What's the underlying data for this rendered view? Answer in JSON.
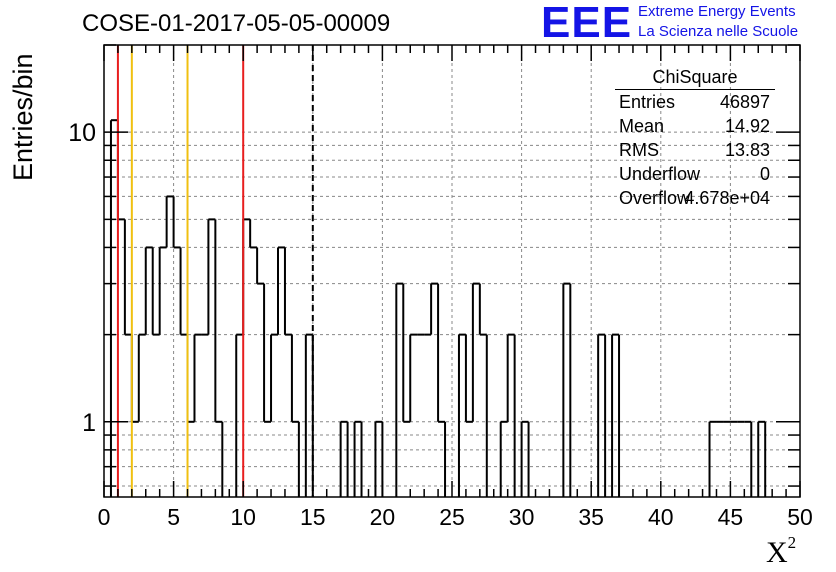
{
  "title": "COSE-01-2017-05-05-00009",
  "logo": {
    "text": "EEE",
    "line1": "Extreme Energy Events",
    "line2": "La Scienza nelle Scuole",
    "color": "#1414e6"
  },
  "stats": {
    "title": "ChiSquare",
    "rows": [
      {
        "key": "Entries",
        "value": "46897"
      },
      {
        "key": "Mean",
        "value": "14.92"
      },
      {
        "key": "RMS",
        "value": "13.83"
      },
      {
        "key": "Underflow",
        "value": "0"
      },
      {
        "key": "Overflow",
        "value": "4.678e+04"
      }
    ]
  },
  "chart_data": {
    "type": "histogram",
    "title": "COSE-01-2017-05-05-00009",
    "xlabel": "X",
    "xlabel_superscript": "2",
    "ylabel": "Entries/bin",
    "xlim": [
      0,
      50
    ],
    "ylim": [
      0.55,
      20
    ],
    "yscale": "log",
    "bin_width": 0.5,
    "grid": true,
    "xticks": [
      0,
      5,
      10,
      15,
      20,
      25,
      30,
      35,
      40,
      45,
      50
    ],
    "yticks": [
      {
        "value": 1,
        "label": "1"
      },
      {
        "value": 10,
        "label": "10"
      }
    ],
    "bins": [
      {
        "x": 0.5,
        "y": 11
      },
      {
        "x": 1.0,
        "y": 5
      },
      {
        "x": 1.5,
        "y": 2
      },
      {
        "x": 2.0,
        "y": 1
      },
      {
        "x": 2.5,
        "y": 2
      },
      {
        "x": 3.0,
        "y": 4
      },
      {
        "x": 3.5,
        "y": 2
      },
      {
        "x": 4.0,
        "y": 4
      },
      {
        "x": 4.5,
        "y": 6
      },
      {
        "x": 5.0,
        "y": 4
      },
      {
        "x": 5.5,
        "y": 2
      },
      {
        "x": 6.0,
        "y": 1
      },
      {
        "x": 6.5,
        "y": 2
      },
      {
        "x": 7.0,
        "y": 2
      },
      {
        "x": 7.5,
        "y": 5
      },
      {
        "x": 8.0,
        "y": 1
      },
      {
        "x": 9.5,
        "y": 2
      },
      {
        "x": 10.0,
        "y": 5
      },
      {
        "x": 10.5,
        "y": 4
      },
      {
        "x": 11.0,
        "y": 3
      },
      {
        "x": 11.5,
        "y": 1
      },
      {
        "x": 12.0,
        "y": 2
      },
      {
        "x": 12.5,
        "y": 4
      },
      {
        "x": 13.0,
        "y": 2
      },
      {
        "x": 13.5,
        "y": 1
      },
      {
        "x": 14.5,
        "y": 2
      },
      {
        "x": 17.0,
        "y": 1
      },
      {
        "x": 18.0,
        "y": 1
      },
      {
        "x": 19.5,
        "y": 1
      },
      {
        "x": 21.0,
        "y": 3
      },
      {
        "x": 21.5,
        "y": 1
      },
      {
        "x": 22.0,
        "y": 2
      },
      {
        "x": 22.5,
        "y": 2
      },
      {
        "x": 23.0,
        "y": 2
      },
      {
        "x": 23.5,
        "y": 3
      },
      {
        "x": 24.0,
        "y": 1
      },
      {
        "x": 25.5,
        "y": 2
      },
      {
        "x": 26.0,
        "y": 1
      },
      {
        "x": 26.5,
        "y": 3
      },
      {
        "x": 27.0,
        "y": 2
      },
      {
        "x": 28.5,
        "y": 1
      },
      {
        "x": 29.0,
        "y": 2
      },
      {
        "x": 30.0,
        "y": 1
      },
      {
        "x": 33.0,
        "y": 3
      },
      {
        "x": 35.5,
        "y": 2
      },
      {
        "x": 36.5,
        "y": 2
      },
      {
        "x": 43.5,
        "y": 1
      },
      {
        "x": 44.0,
        "y": 1
      },
      {
        "x": 44.5,
        "y": 1
      },
      {
        "x": 45.0,
        "y": 1
      },
      {
        "x": 45.5,
        "y": 1
      },
      {
        "x": 46.0,
        "y": 1
      },
      {
        "x": 47.0,
        "y": 1
      }
    ],
    "vertical_lines": [
      {
        "x": 1,
        "color": "#e81e1e",
        "style": "solid"
      },
      {
        "x": 2,
        "color": "#f0c010",
        "style": "solid"
      },
      {
        "x": 6,
        "color": "#f0c010",
        "style": "solid"
      },
      {
        "x": 10,
        "color": "#e81e1e",
        "style": "solid"
      },
      {
        "x": 15,
        "color": "#000000",
        "style": "dashed"
      }
    ]
  }
}
